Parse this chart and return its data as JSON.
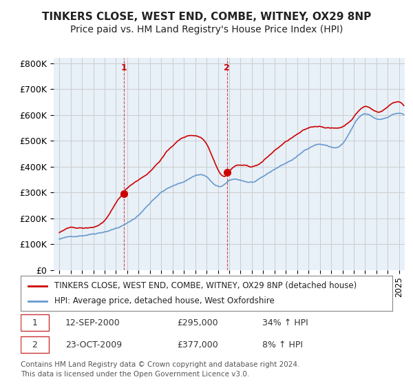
{
  "title": "TINKERS CLOSE, WEST END, COMBE, WITNEY, OX29 8NP",
  "subtitle": "Price paid vs. HM Land Registry's House Price Index (HPI)",
  "ylabel": "",
  "xlabel": "",
  "ylim": [
    0,
    820000
  ],
  "yticks": [
    0,
    100000,
    200000,
    300000,
    400000,
    500000,
    600000,
    700000,
    800000
  ],
  "ytick_labels": [
    "£0",
    "£100K",
    "£200K",
    "£300K",
    "£400K",
    "£500K",
    "£600K",
    "£700K",
    "£800K"
  ],
  "hpi_color": "#6699cc",
  "price_color": "#cc0000",
  "marker_color_1": "#cc0000",
  "marker_color_2": "#cc0000",
  "grid_color": "#cccccc",
  "bg_color": "#e8f0f8",
  "plot_bg": "#e8f0f8",
  "sale1_date": "12-SEP-2000",
  "sale1_price": "£295,000",
  "sale1_hpi": "34% ↑ HPI",
  "sale1_year": 2000.7,
  "sale1_value": 295000,
  "sale2_date": "23-OCT-2009",
  "sale2_price": "£377,000",
  "sale2_hpi": "8% ↑ HPI",
  "sale2_year": 2009.8,
  "sale2_value": 377000,
  "legend_line1": "TINKERS CLOSE, WEST END, COMBE, WITNEY, OX29 8NP (detached house)",
  "legend_line2": "HPI: Average price, detached house, West Oxfordshire",
  "footer": "Contains HM Land Registry data © Crown copyright and database right 2024.\nThis data is licensed under the Open Government Licence v3.0.",
  "title_fontsize": 11,
  "subtitle_fontsize": 10,
  "tick_fontsize": 9,
  "legend_fontsize": 8.5,
  "footer_fontsize": 7.5
}
